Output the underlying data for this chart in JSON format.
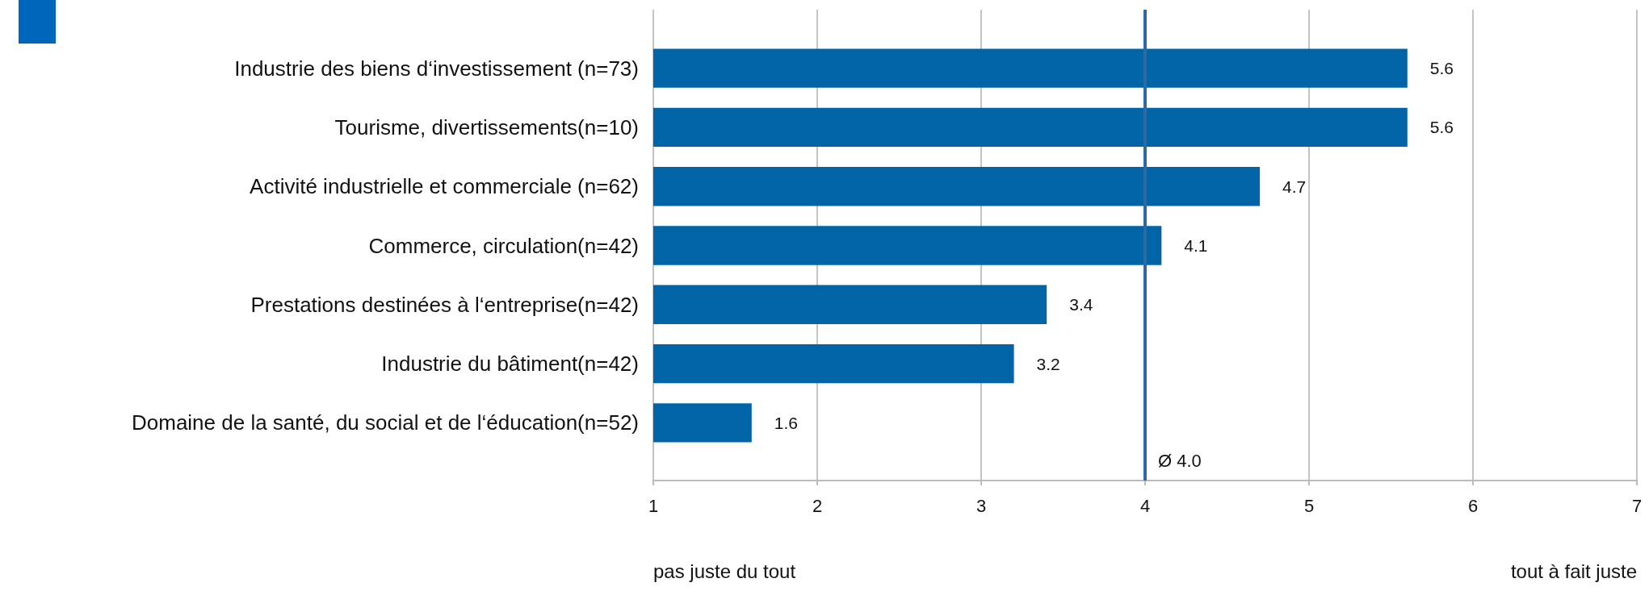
{
  "chart_data": {
    "type": "bar",
    "orientation": "horizontal",
    "categories": [
      "Industrie des biens d‘investissement (n=73)",
      "Tourisme, divertissements(n=10)",
      "Activité industrielle et commerciale (n=62)",
      "Commerce, circulation(n=42)",
      "Prestations destinées à l‘entreprise(n=42)",
      "Industrie du bâtiment(n=42)",
      "Domaine de la santé, du social et de l‘éducation(n=52)"
    ],
    "values": [
      5.6,
      5.6,
      4.7,
      4.1,
      3.4,
      3.2,
      1.6
    ],
    "color": "#0064a7",
    "data_labels": true,
    "xlim": [
      1,
      7
    ],
    "xticks": [
      1,
      2,
      3,
      4,
      5,
      6,
      7
    ],
    "grid": "x",
    "ref_lines": [
      {
        "axis": "x",
        "value": 4.0,
        "label": "Ø 4.0",
        "color": "#2b6aa3"
      }
    ],
    "annotations": [
      "pas juste du tout",
      "tout à fait juste"
    ]
  }
}
